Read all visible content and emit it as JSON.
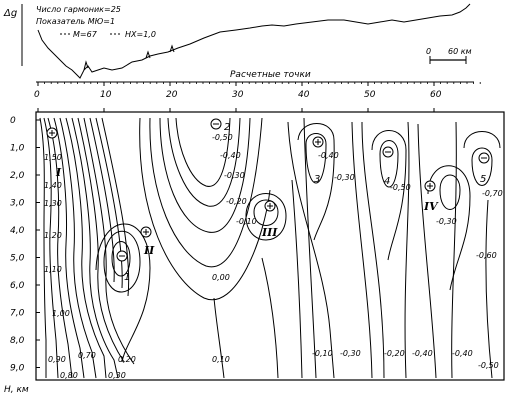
{
  "profile": {
    "ylabel": "Δg",
    "legend_lines": [
      "Число гармоник=25",
      "Показатель МЮ=1"
    ],
    "series_legend": [
      "M=67",
      "HX=1,0"
    ],
    "scale_label": "60 км",
    "scale_zero": "0",
    "xlabel": "Расчетные точки",
    "x_ticks": [
      "0",
      "10",
      "20",
      "30",
      "40",
      "50",
      "60"
    ]
  },
  "section": {
    "ylabel": "H, км",
    "y_ticks": [
      "0",
      "1,0",
      "2,0",
      "3,0",
      "4,0",
      "5,0",
      "6,0",
      "7,0",
      "8,0",
      "9,0"
    ],
    "blocks": [
      "I",
      "II",
      "III",
      "IV"
    ],
    "bodies": [
      "1",
      "2",
      "3",
      "4",
      "5"
    ],
    "signs": [
      "+",
      "-"
    ],
    "contour_labels": [
      "1,50",
      "1,40",
      "1,30",
      "1,20",
      "1,10",
      "1,00",
      "0,90",
      "0,80",
      "0,70",
      "0,20",
      "0,30",
      "0,10",
      "0,00",
      "-0,10",
      "-0,20",
      "-0,30",
      "-0,40",
      "-0,50",
      "-0,60",
      "-0,70"
    ]
  },
  "chart_data": [
    {
      "type": "line",
      "title": "",
      "xlabel": "Расчетные точки",
      "ylabel": "Δg",
      "xlim": [
        0,
        67
      ],
      "annotations": [
        "Число гармоник=25",
        "Показатель МЮ=1",
        "M=67",
        "HX=1,0",
        "0",
        "60 км"
      ],
      "series": [
        {
          "x": [
            0,
            1,
            2,
            3,
            4,
            5,
            6,
            7,
            8,
            9,
            10,
            12,
            14,
            16,
            18,
            20,
            22,
            24,
            26,
            28,
            30,
            32,
            34,
            36,
            38,
            40,
            42,
            44,
            46,
            48,
            50,
            52,
            54,
            56,
            58,
            60,
            62,
            64,
            66,
            67
          ],
          "values": [
            2.0,
            1.9,
            1.4,
            1.0,
            0.6,
            0.3,
            0.0,
            0.1,
            0.2,
            0.0,
            0.1,
            0.2,
            0.3,
            0.35,
            0.4,
            0.5,
            0.6,
            0.7,
            0.85,
            0.95,
            1.1,
            1.2,
            1.2,
            1.3,
            1.35,
            1.4,
            1.5,
            1.55,
            1.6,
            1.65,
            1.6,
            1.55,
            1.6,
            1.65,
            1.7,
            1.7,
            1.8,
            1.9,
            2.3,
            2.5
          ]
        }
      ]
    },
    {
      "type": "heatmap",
      "title": "",
      "xlabel": "Расчетные точки",
      "ylabel": "H, км",
      "xlim": [
        0,
        67
      ],
      "ylim": [
        0,
        9.6
      ],
      "y_ticks": [
        "0",
        "1,0",
        "2,0",
        "3,0",
        "4,0",
        "5,0",
        "6,0",
        "7,0",
        "8,0",
        "9,0"
      ],
      "contour_levels": [
        1.5,
        1.4,
        1.3,
        1.2,
        1.1,
        1.0,
        0.9,
        0.8,
        0.7,
        0.3,
        0.2,
        0.1,
        0.0,
        -0.1,
        -0.2,
        -0.3,
        -0.4,
        -0.5,
        -0.6,
        -0.7
      ],
      "annotations": [
        "I",
        "II",
        "III",
        "IV",
        "1",
        "2",
        "3",
        "4",
        "5"
      ]
    }
  ]
}
